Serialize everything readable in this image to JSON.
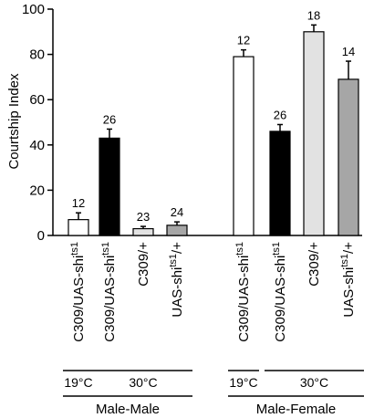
{
  "chart_data": {
    "type": "bar",
    "ylabel": "Courtship Index",
    "ylim": [
      0,
      100
    ],
    "yticks": [
      0,
      20,
      40,
      60,
      80,
      100
    ],
    "bars": [
      {
        "group": 0,
        "label_main": "C309/UAS-shi",
        "label_sup": "ts1",
        "label_tail": "",
        "value": 7,
        "error": 3,
        "n": "12",
        "fill": "#ffffff"
      },
      {
        "group": 0,
        "label_main": "C309/UAS-shi",
        "label_sup": "ts1",
        "label_tail": "",
        "value": 43,
        "error": 4,
        "n": "26",
        "fill": "#000000"
      },
      {
        "group": 0,
        "label_main": "C309/+",
        "label_sup": "",
        "label_tail": "",
        "value": 3,
        "error": 1,
        "n": "23",
        "fill": "#e2e2e2"
      },
      {
        "group": 0,
        "label_main": "UAS-shi",
        "label_sup": "ts1",
        "label_tail": "/+",
        "value": 4.5,
        "error": 1.5,
        "n": "24",
        "fill": "#a6a6a6"
      },
      {
        "group": 1,
        "label_main": "C309/UAS-shi",
        "label_sup": "ts1",
        "label_tail": "",
        "value": 79,
        "error": 3,
        "n": "12",
        "fill": "#ffffff"
      },
      {
        "group": 1,
        "label_main": "C309/UAS-shi",
        "label_sup": "ts1",
        "label_tail": "",
        "value": 46,
        "error": 3,
        "n": "26",
        "fill": "#000000"
      },
      {
        "group": 1,
        "label_main": "C309/+",
        "label_sup": "",
        "label_tail": "",
        "value": 90,
        "error": 3,
        "n": "18",
        "fill": "#e2e2e2"
      },
      {
        "group": 1,
        "label_main": "UAS-shi",
        "label_sup": "ts1",
        "label_tail": "/+",
        "value": 69,
        "error": 8,
        "n": "14",
        "fill": "#a6a6a6"
      }
    ],
    "temperatures": [
      {
        "label": "19°C",
        "bars": [
          0
        ]
      },
      {
        "label": "30°C",
        "bars": [
          1,
          2,
          3
        ]
      },
      {
        "label": "19°C",
        "bars": [
          4
        ]
      },
      {
        "label": "30°C",
        "bars": [
          5,
          6,
          7
        ]
      }
    ],
    "groups": [
      {
        "label": "Male-Male",
        "bars": [
          0,
          1,
          2,
          3
        ]
      },
      {
        "label": "Male-Female",
        "bars": [
          4,
          5,
          6,
          7
        ]
      }
    ],
    "grid": false,
    "legend": "none"
  }
}
